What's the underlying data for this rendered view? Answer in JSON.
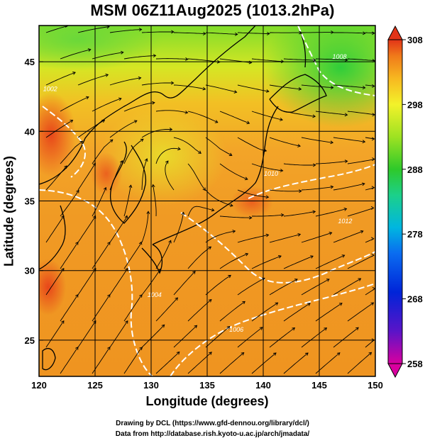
{
  "title": "MSM 06Z11Aug2025 (1013.2hPa)",
  "x_axis": {
    "label": "Longitude (degrees)",
    "ticks": [
      {
        "value": 120,
        "label": "120"
      },
      {
        "value": 125,
        "label": "125"
      },
      {
        "value": 130,
        "label": "130"
      },
      {
        "value": 135,
        "label": "135"
      },
      {
        "value": 140,
        "label": "140"
      },
      {
        "value": 145,
        "label": "145"
      },
      {
        "value": 150,
        "label": "150"
      }
    ],
    "range": [
      120,
      150
    ]
  },
  "y_axis": {
    "label": "Latitude  (degrees)",
    "ticks": [
      {
        "value": 25,
        "label": "25"
      },
      {
        "value": 30,
        "label": "30"
      },
      {
        "value": 35,
        "label": "35"
      },
      {
        "value": 40,
        "label": "40"
      },
      {
        "value": 45,
        "label": "45"
      }
    ],
    "range": [
      22.4,
      47.6
    ]
  },
  "colorbar": {
    "min": 258,
    "max": 308,
    "ticks": [
      {
        "value": 308,
        "label": "308"
      },
      {
        "value": 298,
        "label": "298"
      },
      {
        "value": 288,
        "label": "288"
      },
      {
        "value": 278,
        "label": "278"
      },
      {
        "value": 268,
        "label": "268"
      },
      {
        "value": 258,
        "label": "258"
      }
    ]
  },
  "contour_labels": [
    {
      "text": "1002",
      "lon": 121.0,
      "lat": 42.9
    },
    {
      "text": "1004",
      "lon": 130.3,
      "lat": 28.1
    },
    {
      "text": "1006",
      "lon": 137.6,
      "lat": 25.6
    },
    {
      "text": "1010",
      "lon": 140.7,
      "lat": 36.8
    },
    {
      "text": "1012",
      "lon": 147.3,
      "lat": 33.4
    },
    {
      "text": "1008",
      "lon": 146.8,
      "lat": 45.2
    }
  ],
  "credits": {
    "line1": "Drawing by DCL (https://www.gfd-dennou.org/library/dcl/)",
    "line2": "Data from http://database.rish.kyoto-u.ac.jp/arch/jmadata/"
  }
}
